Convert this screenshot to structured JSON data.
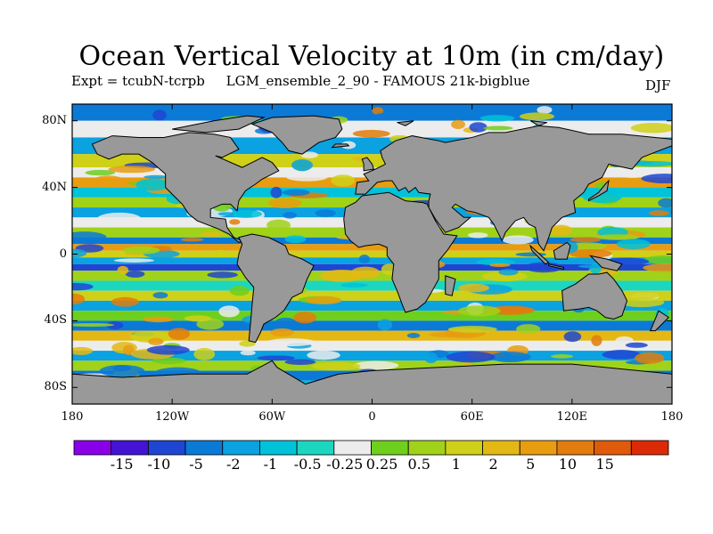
{
  "title": "Ocean Vertical Velocity at 10m (in cm/day)",
  "subtitle": {
    "experiment": "Expt = tcubN-tcrpb     LGM_ensemble_2_90 - FAMOUS 21k-bigblue",
    "season": "DJF"
  },
  "map": {
    "projection": "cylindrical-equidistant",
    "lon_range": [
      -180,
      180
    ],
    "lat_range": [
      -90,
      90
    ],
    "land_color": "#999999",
    "lat_ticks": [
      "80N",
      "40N",
      "0",
      "40S",
      "80S"
    ],
    "lon_ticks": [
      "180",
      "120W",
      "60W",
      "0",
      "60E",
      "120E",
      "180"
    ]
  },
  "colorbar": {
    "colors": [
      "#8a00e8",
      "#4414d4",
      "#1e46d2",
      "#0a7ad6",
      "#0aa2e0",
      "#00c2d8",
      "#1cd6c0",
      "#ececec",
      "#6ecf1c",
      "#a0d21a",
      "#cfd018",
      "#e4b814",
      "#e89c10",
      "#e27c0c",
      "#e05a0c",
      "#dc2a06"
    ],
    "labels": [
      "-15",
      "-10",
      "-5",
      "-2",
      "-1",
      "-0.5",
      "-0.25",
      "0.25",
      "0.5",
      "1",
      "2",
      "5",
      "10",
      "15"
    ]
  }
}
